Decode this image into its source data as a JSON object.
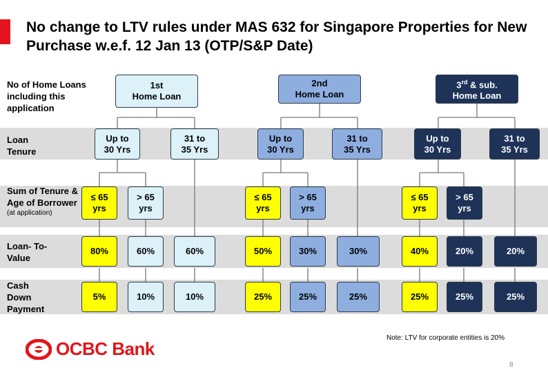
{
  "title": "No change to LTV rules under MAS 632 for Singapore Properties for New Purchase w.e.f. 12 Jan 13 (OTP/S&P Date)",
  "row_labels": {
    "loans": "No of Home Loans including this application",
    "tenure": "Loan Tenure",
    "age": "Sum of Tenure & Age of Borrower",
    "age_note": "(at application)",
    "ltv": "Loan- To-Value",
    "cash": "Cash Down Payment"
  },
  "groups": [
    {
      "loan_line1": "1st",
      "loan_line2": "Home Loan",
      "tenure_a": [
        "Up to",
        "30 Yrs"
      ],
      "tenure_b": [
        "31 to",
        "35 Yrs"
      ],
      "age_a": [
        "≤ 65",
        "yrs"
      ],
      "age_b": [
        "> 65",
        "yrs"
      ],
      "ltv": [
        "80%",
        "60%",
        "60%"
      ],
      "cash": [
        "5%",
        "10%",
        "10%"
      ]
    },
    {
      "loan_line1": "2nd",
      "loan_line2": "Home Loan",
      "tenure_a": [
        "Up to",
        "30 Yrs"
      ],
      "tenure_b": [
        "31 to",
        "35 Yrs"
      ],
      "age_a": [
        "≤ 65",
        "yrs"
      ],
      "age_b": [
        "> 65",
        "yrs"
      ],
      "ltv": [
        "50%",
        "30%",
        "30%"
      ],
      "cash": [
        "25%",
        "25%",
        "25%"
      ]
    },
    {
      "loan_line1_main": "3",
      "loan_line1_sup": "rd",
      "loan_line1_rest": " & sub.",
      "loan_line2": "Home Loan",
      "tenure_a": [
        "Up to",
        "30 Yrs"
      ],
      "tenure_b": [
        "31 to",
        "35 Yrs"
      ],
      "age_a": [
        "≤ 65",
        "yrs"
      ],
      "age_b": [
        "> 65",
        "yrs"
      ],
      "ltv": [
        "40%",
        "20%",
        "20%"
      ],
      "cash": [
        "25%",
        "25%",
        "25%"
      ]
    }
  ],
  "note": "Note: LTV for corporate entities is 20%",
  "logo_text": "OCBC Bank",
  "page_number": "8",
  "colors": {
    "accent": "#e3141b",
    "group1": "#dcf1f8",
    "group2": "#8eaee0",
    "group3": "#1e3357",
    "highlight": "#ffff00"
  }
}
